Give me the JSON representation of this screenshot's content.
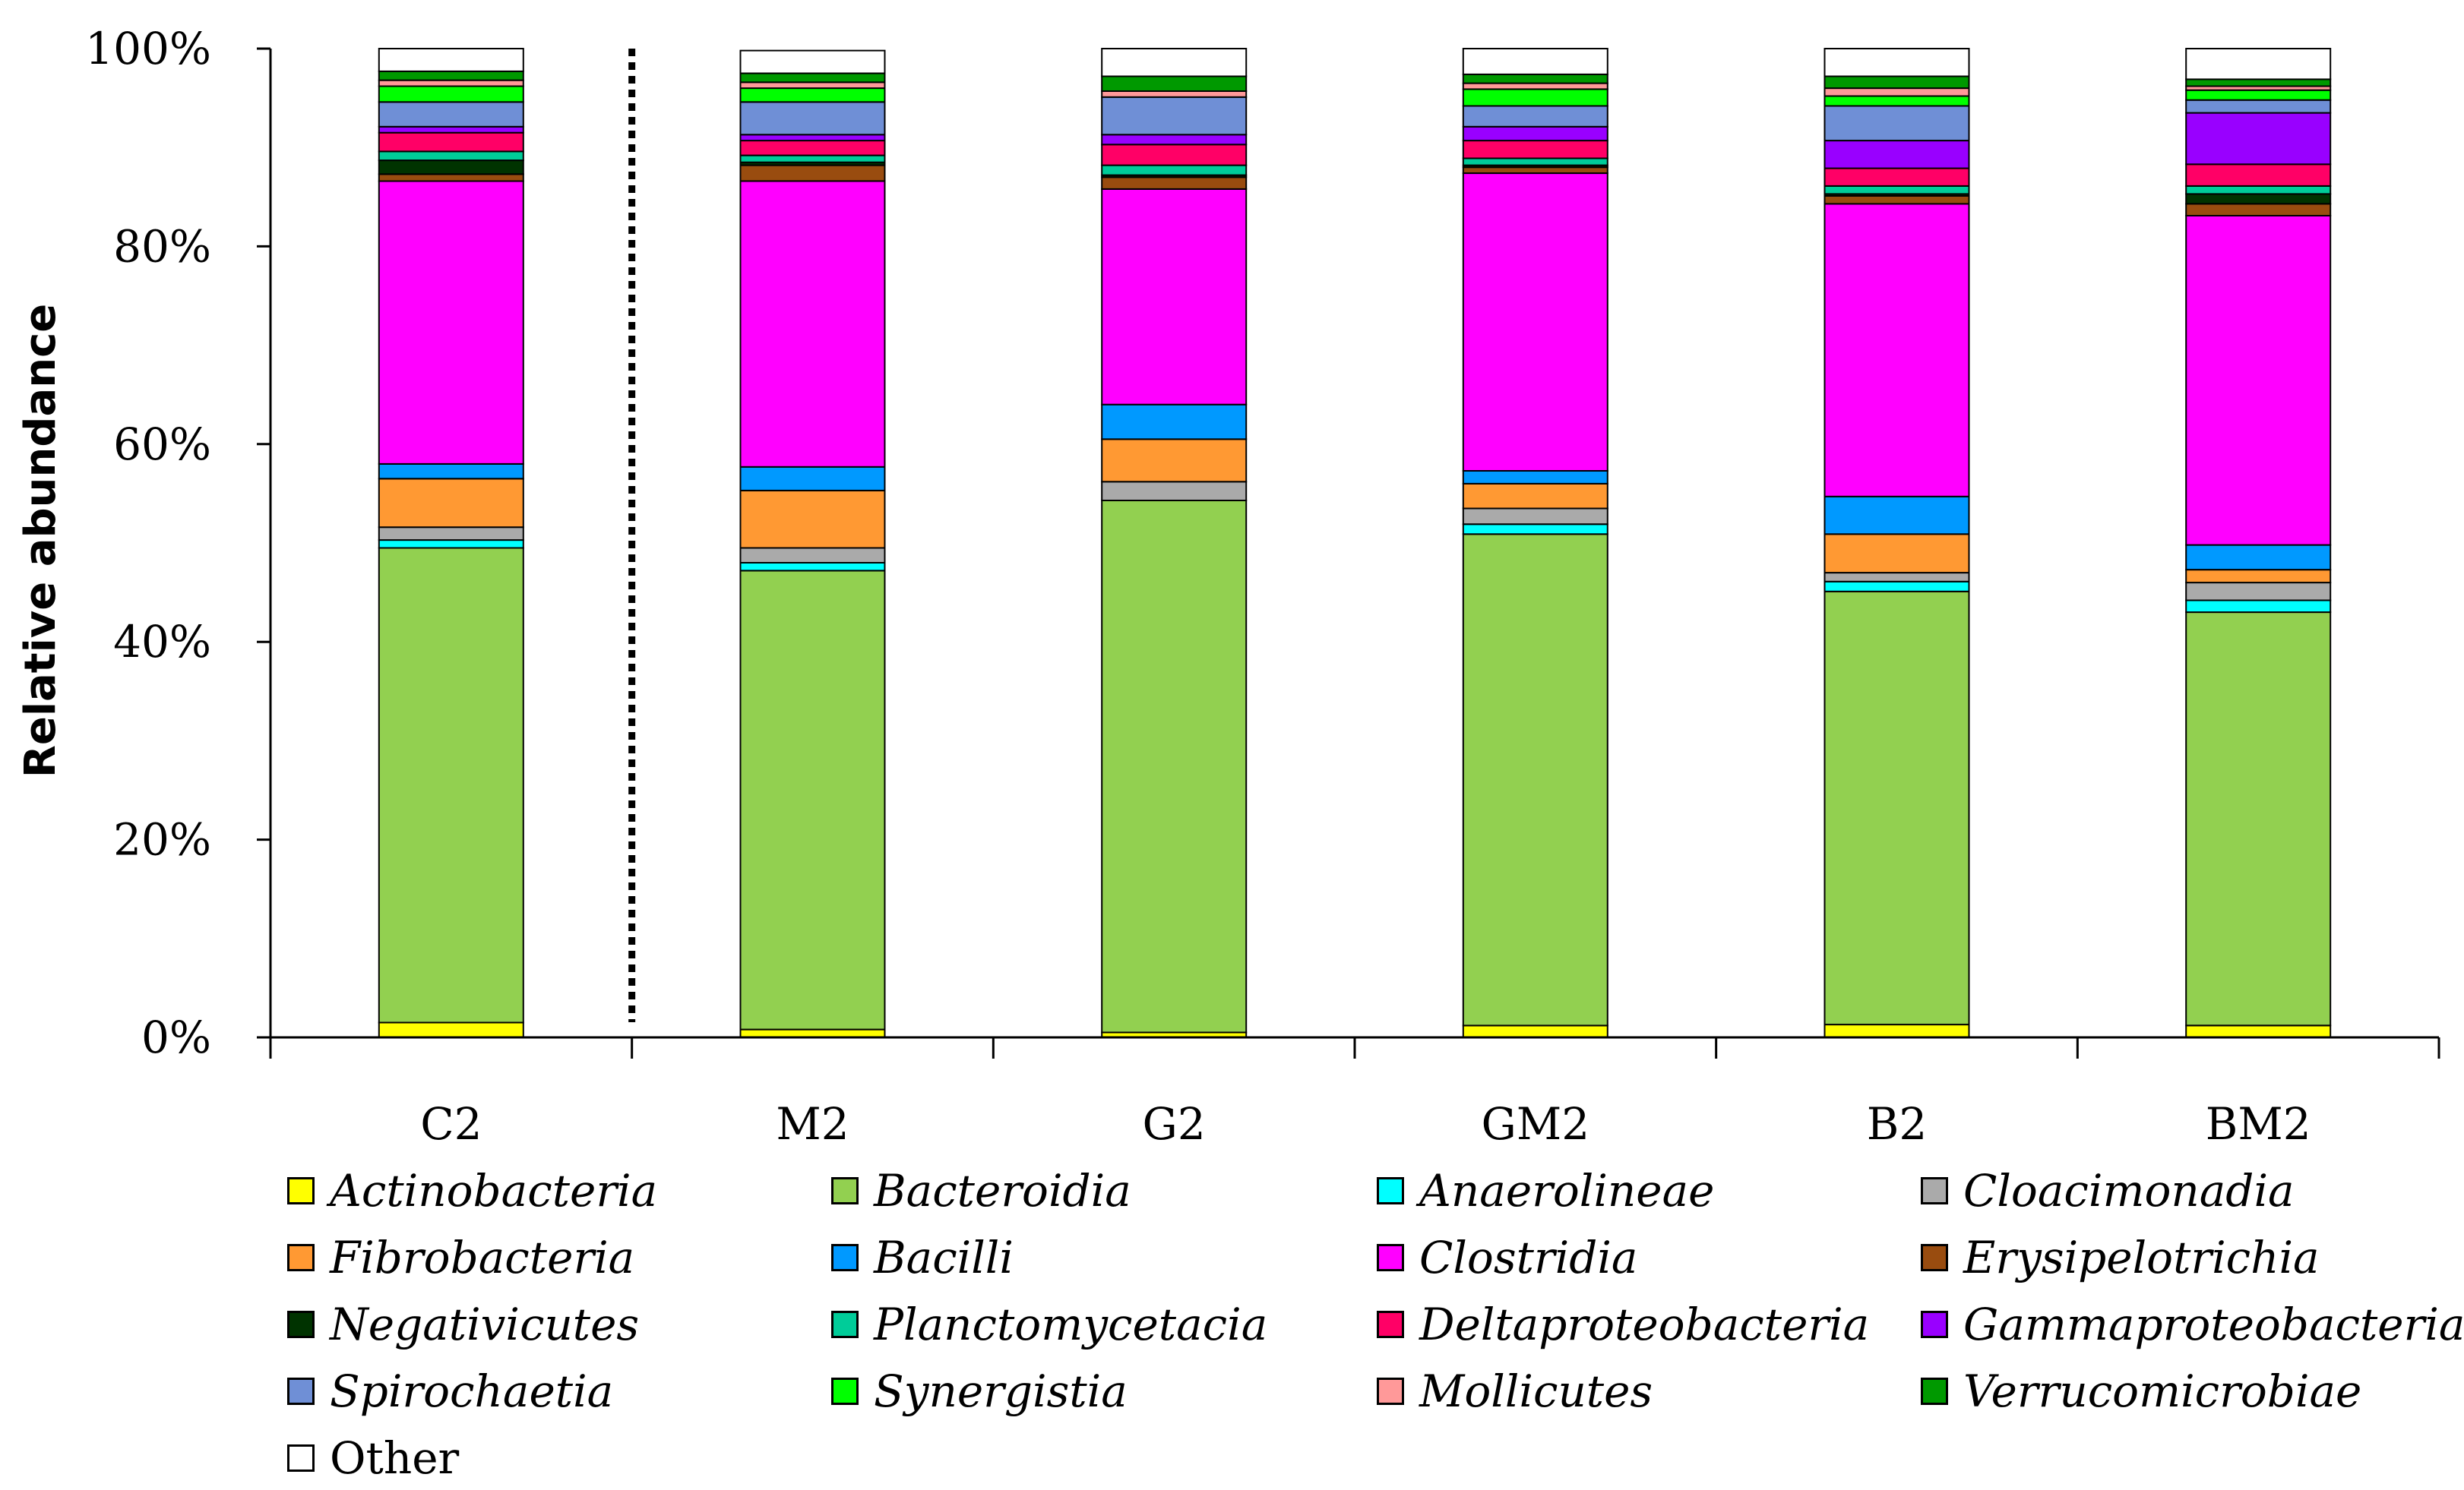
{
  "chart_data": {
    "type": "bar",
    "stacked": true,
    "ylabel": "Relative abundance",
    "xlabel": "",
    "ylim": [
      0,
      100
    ],
    "yticks": [
      "0%",
      "20%",
      "40%",
      "60%",
      "80%",
      "100%"
    ],
    "categories": [
      "C2",
      "M2",
      "G2",
      "GM2",
      "B2",
      "BM2"
    ],
    "separator_after_category": "C2",
    "series": [
      {
        "name": "Actinobacteria",
        "italic": true,
        "color": "#ffff00",
        "values": [
          1.5,
          0.8,
          0.5,
          1.2,
          1.3,
          1.2
        ]
      },
      {
        "name": "Bacteroidia",
        "italic": true,
        "color": "#92d050",
        "values": [
          48.0,
          46.4,
          53.8,
          49.7,
          43.8,
          41.8
        ]
      },
      {
        "name": "Anaerolineae",
        "italic": true,
        "color": "#00ffff",
        "values": [
          0.8,
          0.8,
          0.0,
          1.0,
          1.0,
          1.2
        ]
      },
      {
        "name": "Cloacimonadia",
        "italic": true,
        "color": "#aaaaaa",
        "values": [
          1.3,
          1.5,
          1.9,
          1.6,
          0.9,
          1.8
        ]
      },
      {
        "name": "Fibrobacteria",
        "italic": true,
        "color": "#ff9933",
        "values": [
          4.9,
          5.8,
          4.3,
          2.5,
          3.9,
          1.3
        ]
      },
      {
        "name": "Bacilli",
        "italic": true,
        "color": "#0099ff",
        "values": [
          1.5,
          2.4,
          3.5,
          1.3,
          3.8,
          2.5
        ]
      },
      {
        "name": "Clostridia",
        "italic": true,
        "color": "#ff00ff",
        "values": [
          28.6,
          28.9,
          21.8,
          30.1,
          29.6,
          33.3
        ]
      },
      {
        "name": "Erysipelotrichia",
        "italic": true,
        "color": "#994c0f",
        "values": [
          0.7,
          1.6,
          1.2,
          0.6,
          0.8,
          1.2
        ]
      },
      {
        "name": "Negativicutes",
        "italic": true,
        "color": "#003300",
        "values": [
          1.4,
          0.3,
          0.2,
          0.2,
          0.2,
          1.0
        ]
      },
      {
        "name": "Planctomycetacia",
        "italic": true,
        "color": "#00cc99",
        "values": [
          0.9,
          0.7,
          1.0,
          0.7,
          0.8,
          0.8
        ]
      },
      {
        "name": "Deltaproteobacteria",
        "italic": true,
        "color": "#ff0066",
        "values": [
          1.9,
          1.5,
          2.1,
          1.8,
          1.8,
          2.2
        ]
      },
      {
        "name": "Gammaproteobacteria",
        "italic": true,
        "color": "#9900ff",
        "values": [
          0.6,
          0.6,
          1.0,
          1.4,
          2.8,
          5.2
        ]
      },
      {
        "name": "Spirochaetia",
        "italic": true,
        "color": "#6f8fd6",
        "values": [
          2.5,
          3.3,
          3.8,
          2.1,
          3.5,
          1.3
        ]
      },
      {
        "name": "Synergistia",
        "italic": true,
        "color": "#00ff00",
        "values": [
          1.6,
          1.4,
          0.0,
          1.7,
          1.0,
          1.0
        ]
      },
      {
        "name": "Mollicutes",
        "italic": true,
        "color": "#ff9999",
        "values": [
          0.6,
          0.6,
          0.6,
          0.6,
          0.8,
          0.4
        ]
      },
      {
        "name": "Verrucomicrobiae",
        "italic": true,
        "color": "#009900",
        "values": [
          0.9,
          0.9,
          1.5,
          0.9,
          1.2,
          0.7
        ]
      },
      {
        "name": "Other",
        "italic": false,
        "color": "#ffffff",
        "values": [
          2.3,
          2.3,
          2.8,
          2.6,
          2.8,
          3.1
        ]
      }
    ]
  }
}
